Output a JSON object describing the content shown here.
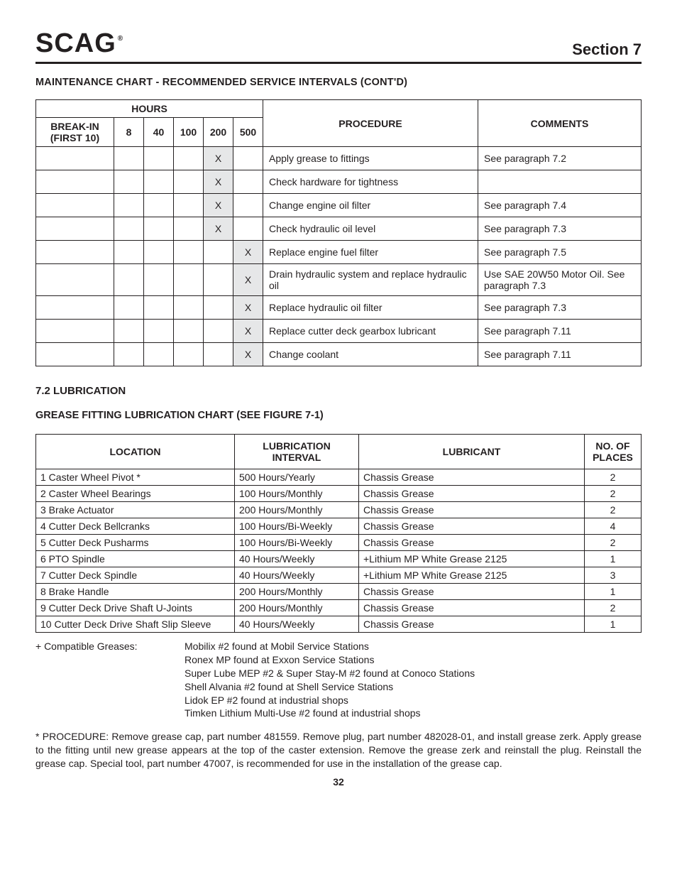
{
  "header": {
    "logo_text": "SCAG",
    "logo_reg": "®",
    "section_label": "Section 7"
  },
  "maint": {
    "title": "MAINTENANCE CHART - RECOMMENDED SERVICE INTERVALS (CONT'D)",
    "hours_label": "HOURS",
    "break_in_label": "BREAK-IN (FIRST 10)",
    "h8": "8",
    "h40": "40",
    "h100": "100",
    "h200": "200",
    "h500": "500",
    "procedure_label": "PROCEDURE",
    "comments_label": "COMMENTS",
    "x": "X",
    "rows": [
      {
        "h200": true,
        "h500": false,
        "proc": "Apply grease to fittings",
        "comm": "See paragraph 7.2"
      },
      {
        "h200": true,
        "h500": false,
        "proc": "Check hardware for tightness",
        "comm": ""
      },
      {
        "h200": true,
        "h500": false,
        "proc": "Change engine oil filter",
        "comm": "See paragraph 7.4"
      },
      {
        "h200": true,
        "h500": false,
        "proc": "Check hydraulic oil level",
        "comm": "See paragraph 7.3"
      },
      {
        "h200": false,
        "h500": true,
        "proc": "Replace engine fuel filter",
        "comm": "See paragraph 7.5"
      },
      {
        "h200": false,
        "h500": true,
        "proc": "Drain hydraulic system and replace hydraulic oil",
        "comm": "Use SAE 20W50 Motor Oil. See paragraph 7.3"
      },
      {
        "h200": false,
        "h500": true,
        "proc": "Replace hydraulic oil filter",
        "comm": "See paragraph 7.3"
      },
      {
        "h200": false,
        "h500": true,
        "proc": "Replace cutter deck gearbox lubricant",
        "comm": "See paragraph 7.11",
        "just": true
      },
      {
        "h200": false,
        "h500": true,
        "proc": "Change coolant",
        "comm": "See paragraph 7.11"
      }
    ]
  },
  "lube": {
    "section_title": "7.2 LUBRICATION",
    "chart_title": "GREASE FITTING LUBRICATION CHART (SEE FIGURE 7-1)",
    "headers": {
      "loc": "LOCATION",
      "int": "LUBRICATION INTERVAL",
      "lub": "LUBRICANT",
      "pl": "NO. OF PLACES"
    },
    "rows": [
      {
        "loc": "1 Caster Wheel Pivot *",
        "int": "500 Hours/Yearly",
        "lub": "Chassis Grease",
        "pl": "2"
      },
      {
        "loc": "2 Caster Wheel Bearings",
        "int": "100 Hours/Monthly",
        "lub": "Chassis Grease",
        "pl": "2"
      },
      {
        "loc": "3 Brake Actuator",
        "int": "200 Hours/Monthly",
        "lub": "Chassis Grease",
        "pl": "2"
      },
      {
        "loc": "4 Cutter Deck Bellcranks",
        "int": "100 Hours/Bi-Weekly",
        "lub": "Chassis Grease",
        "pl": "4"
      },
      {
        "loc": "5 Cutter Deck Pusharms",
        "int": "100 Hours/Bi-Weekly",
        "lub": "Chassis Grease",
        "pl": "2"
      },
      {
        "loc": "6 PTO Spindle",
        "int": "40 Hours/Weekly",
        "lub": "+Lithium MP White Grease 2125",
        "pl": "1"
      },
      {
        "loc": "7 Cutter Deck Spindle",
        "int": "40 Hours/Weekly",
        "lub": "+Lithium MP White Grease 2125",
        "pl": "3"
      },
      {
        "loc": "8 Brake Handle",
        "int": "200 Hours/Monthly",
        "lub": "Chassis Grease",
        "pl": "1"
      },
      {
        "loc": "9 Cutter Deck Drive Shaft U-Joints",
        "int": "200 Hours/Monthly",
        "lub": "Chassis Grease",
        "pl": "2"
      },
      {
        "loc": "10 Cutter Deck Drive Shaft Slip Sleeve",
        "int": "40 Hours/Weekly",
        "lub": "Chassis Grease",
        "pl": "1"
      }
    ]
  },
  "notes": {
    "label": "+  Compatible Greases:",
    "lines": [
      "Mobilix #2 found at Mobil Service Stations",
      "Ronex MP found at Exxon Service Stations",
      "Super Lube MEP #2 & Super Stay-M #2 found at Conoco Stations",
      "Shell Alvania #2 found at Shell Service Stations",
      "Lidok EP #2 found at industrial shops",
      "Timken Lithium Multi-Use #2 found at industrial shops"
    ],
    "procedure": "*  PROCEDURE: Remove grease cap, part number 481559. Remove plug, part number 482028-01, and install grease zerk. Apply grease to the fitting until new grease appears at the top of the caster extension.  Remove the grease zerk and reinstall the plug. Reinstall the grease cap. Special tool, part number 47007, is recommended for use in the installation of the grease cap."
  },
  "page_number": "32"
}
